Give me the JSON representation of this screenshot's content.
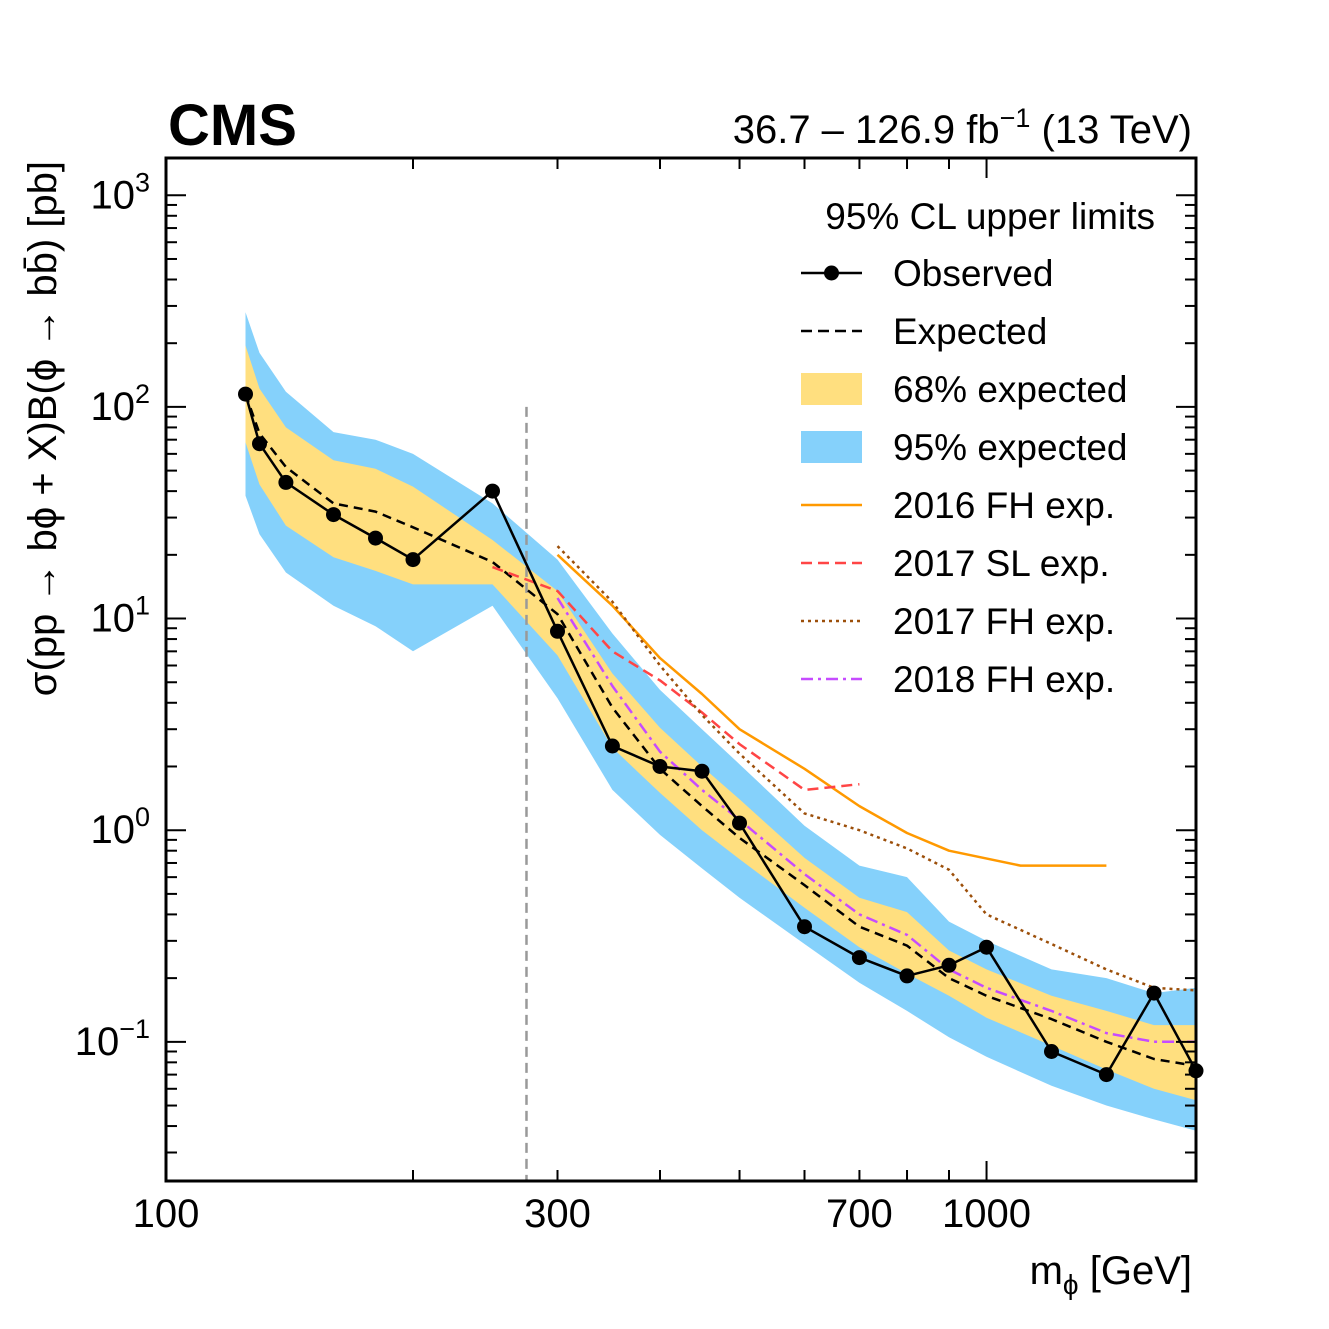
{
  "chart_data": {
    "type": "line",
    "experiment": "CMS",
    "lumi_text": "36.7 – 126.9 fb",
    "lumi_sup": "−1",
    "energy_text": "(13 TeV)",
    "xlabel": "m",
    "xlabel_sub": "ϕ",
    "xlabel_unit": "[GeV]",
    "ylabel": "σ(pp → bϕ + X)B(ϕ → bb̄) [pb]",
    "xscale": "log",
    "yscale": "log",
    "xlim": [
      100,
      1800
    ],
    "ylim": [
      0.022,
      1500
    ],
    "x_tick_labels": [
      "100",
      "300",
      "700",
      "1000"
    ],
    "x_tick_values": [
      100,
      300,
      700,
      1000
    ],
    "y_tick_labels": [
      {
        "base": "10",
        "exp": "−1"
      },
      {
        "base": "10",
        "exp": "0"
      },
      {
        "base": "10",
        "exp": "1"
      },
      {
        "base": "10",
        "exp": "2"
      },
      {
        "base": "10",
        "exp": "3"
      }
    ],
    "y_tick_values": [
      0.1,
      1,
      10,
      100,
      1000
    ],
    "vertical_line_x": 275,
    "legend": {
      "title": "95% CL upper limits",
      "position": "top-right",
      "entries": [
        {
          "key": "observed",
          "label": "Observed",
          "style": "line-marker",
          "color": "#000000"
        },
        {
          "key": "expected",
          "label": "Expected",
          "style": "dashed",
          "color": "#000000"
        },
        {
          "key": "band68",
          "label": "68% expected",
          "style": "fill",
          "color": "#ffdf7f"
        },
        {
          "key": "band95",
          "label": "95% expected",
          "style": "fill",
          "color": "#85d1fb"
        },
        {
          "key": "fh2016",
          "label": "2016 FH exp.",
          "style": "solid",
          "color": "#ff9900"
        },
        {
          "key": "sl2017",
          "label": "2017 SL exp.",
          "style": "dashed",
          "color": "#ff4545"
        },
        {
          "key": "fh2017",
          "label": "2017 FH exp.",
          "style": "dotted",
          "color": "#9c4f0a"
        },
        {
          "key": "fh2018",
          "label": "2018 FH exp.",
          "style": "dashdot",
          "color": "#c64bff"
        }
      ]
    },
    "series": [
      {
        "key": "band95",
        "name": "95% expected",
        "x": [
          125,
          130,
          140,
          160,
          180,
          200,
          250,
          300,
          350,
          400,
          450,
          500,
          600,
          700,
          800,
          900,
          1000,
          1200,
          1400,
          1600,
          1800
        ],
        "low": [
          38,
          25,
          16.5,
          11.5,
          9.2,
          7.0,
          11.5,
          4.2,
          1.55,
          0.95,
          0.66,
          0.48,
          0.29,
          0.19,
          0.14,
          0.105,
          0.085,
          0.062,
          0.05,
          0.043,
          0.038
        ],
        "high": [
          280,
          180,
          118,
          76,
          70,
          60,
          35,
          19,
          8.5,
          4.6,
          3.0,
          2.05,
          1.05,
          0.68,
          0.6,
          0.37,
          0.3,
          0.22,
          0.2,
          0.17,
          0.18
        ]
      },
      {
        "key": "band68",
        "name": "68% expected",
        "x": [
          125,
          130,
          140,
          160,
          180,
          200,
          250,
          300,
          350,
          400,
          450,
          500,
          600,
          700,
          800,
          900,
          1000,
          1200,
          1400,
          1600,
          1800
        ],
        "low": [
          68,
          43,
          27.5,
          19.5,
          16.8,
          14.5,
          14.5,
          6.7,
          2.45,
          1.5,
          1.0,
          0.73,
          0.43,
          0.28,
          0.21,
          0.165,
          0.13,
          0.096,
          0.074,
          0.06,
          0.053
        ],
        "high": [
          195,
          122,
          80,
          56,
          51,
          42,
          23.5,
          13.5,
          5.5,
          3.05,
          2.0,
          1.4,
          0.74,
          0.48,
          0.41,
          0.27,
          0.22,
          0.165,
          0.14,
          0.12,
          0.12
        ]
      },
      {
        "key": "expected",
        "name": "Expected",
        "x": [
          125,
          130,
          140,
          160,
          180,
          200,
          250,
          300,
          350,
          400,
          450,
          500,
          600,
          700,
          800,
          900,
          1000,
          1200,
          1400,
          1600,
          1800
        ],
        "y": [
          115,
          75,
          52,
          35,
          32,
          27,
          18.5,
          10.5,
          3.8,
          1.95,
          1.3,
          0.92,
          0.55,
          0.35,
          0.285,
          0.2,
          0.165,
          0.128,
          0.1,
          0.083,
          0.077
        ]
      },
      {
        "key": "fh2016",
        "name": "2016 FH exp.",
        "x": [
          300,
          350,
          400,
          450,
          500,
          600,
          700,
          800,
          900,
          1100,
          1400
        ],
        "y": [
          20,
          11.5,
          6.5,
          4.4,
          3.0,
          1.95,
          1.3,
          0.97,
          0.8,
          0.68,
          0.68
        ]
      },
      {
        "key": "sl2017",
        "name": "2017 SL exp.",
        "x": [
          250,
          300,
          350,
          400,
          450,
          500,
          600,
          700
        ],
        "y": [
          17.5,
          13.5,
          7.0,
          5.1,
          3.6,
          2.55,
          1.55,
          1.65
        ]
      },
      {
        "key": "fh2017",
        "name": "2017 FH exp.",
        "x": [
          300,
          350,
          400,
          450,
          500,
          600,
          700,
          800,
          900,
          1000,
          1200,
          1400,
          1600,
          1800
        ],
        "y": [
          22,
          12,
          6.0,
          3.5,
          2.3,
          1.2,
          1.0,
          0.82,
          0.65,
          0.4,
          0.29,
          0.22,
          0.18,
          0.175
        ]
      },
      {
        "key": "fh2018",
        "name": "2018 FH exp.",
        "x": [
          300,
          350,
          400,
          450,
          500,
          600,
          700,
          800,
          900,
          1000,
          1200,
          1400,
          1600,
          1800
        ],
        "y": [
          12.5,
          4.8,
          2.35,
          1.55,
          1.12,
          0.62,
          0.4,
          0.32,
          0.22,
          0.18,
          0.14,
          0.11,
          0.1,
          0.1
        ]
      },
      {
        "key": "observed",
        "name": "Observed",
        "x": [
          125,
          130,
          140,
          160,
          180,
          200,
          250,
          300,
          350,
          400,
          450,
          500,
          600,
          700,
          800,
          900,
          1000,
          1200,
          1400,
          1600,
          1800
        ],
        "y": [
          115,
          67,
          44,
          31,
          24,
          19,
          40,
          8.7,
          2.5,
          2.0,
          1.9,
          1.08,
          0.35,
          0.25,
          0.205,
          0.23,
          0.28,
          0.09,
          0.07,
          0.17,
          0.073
        ]
      }
    ]
  }
}
